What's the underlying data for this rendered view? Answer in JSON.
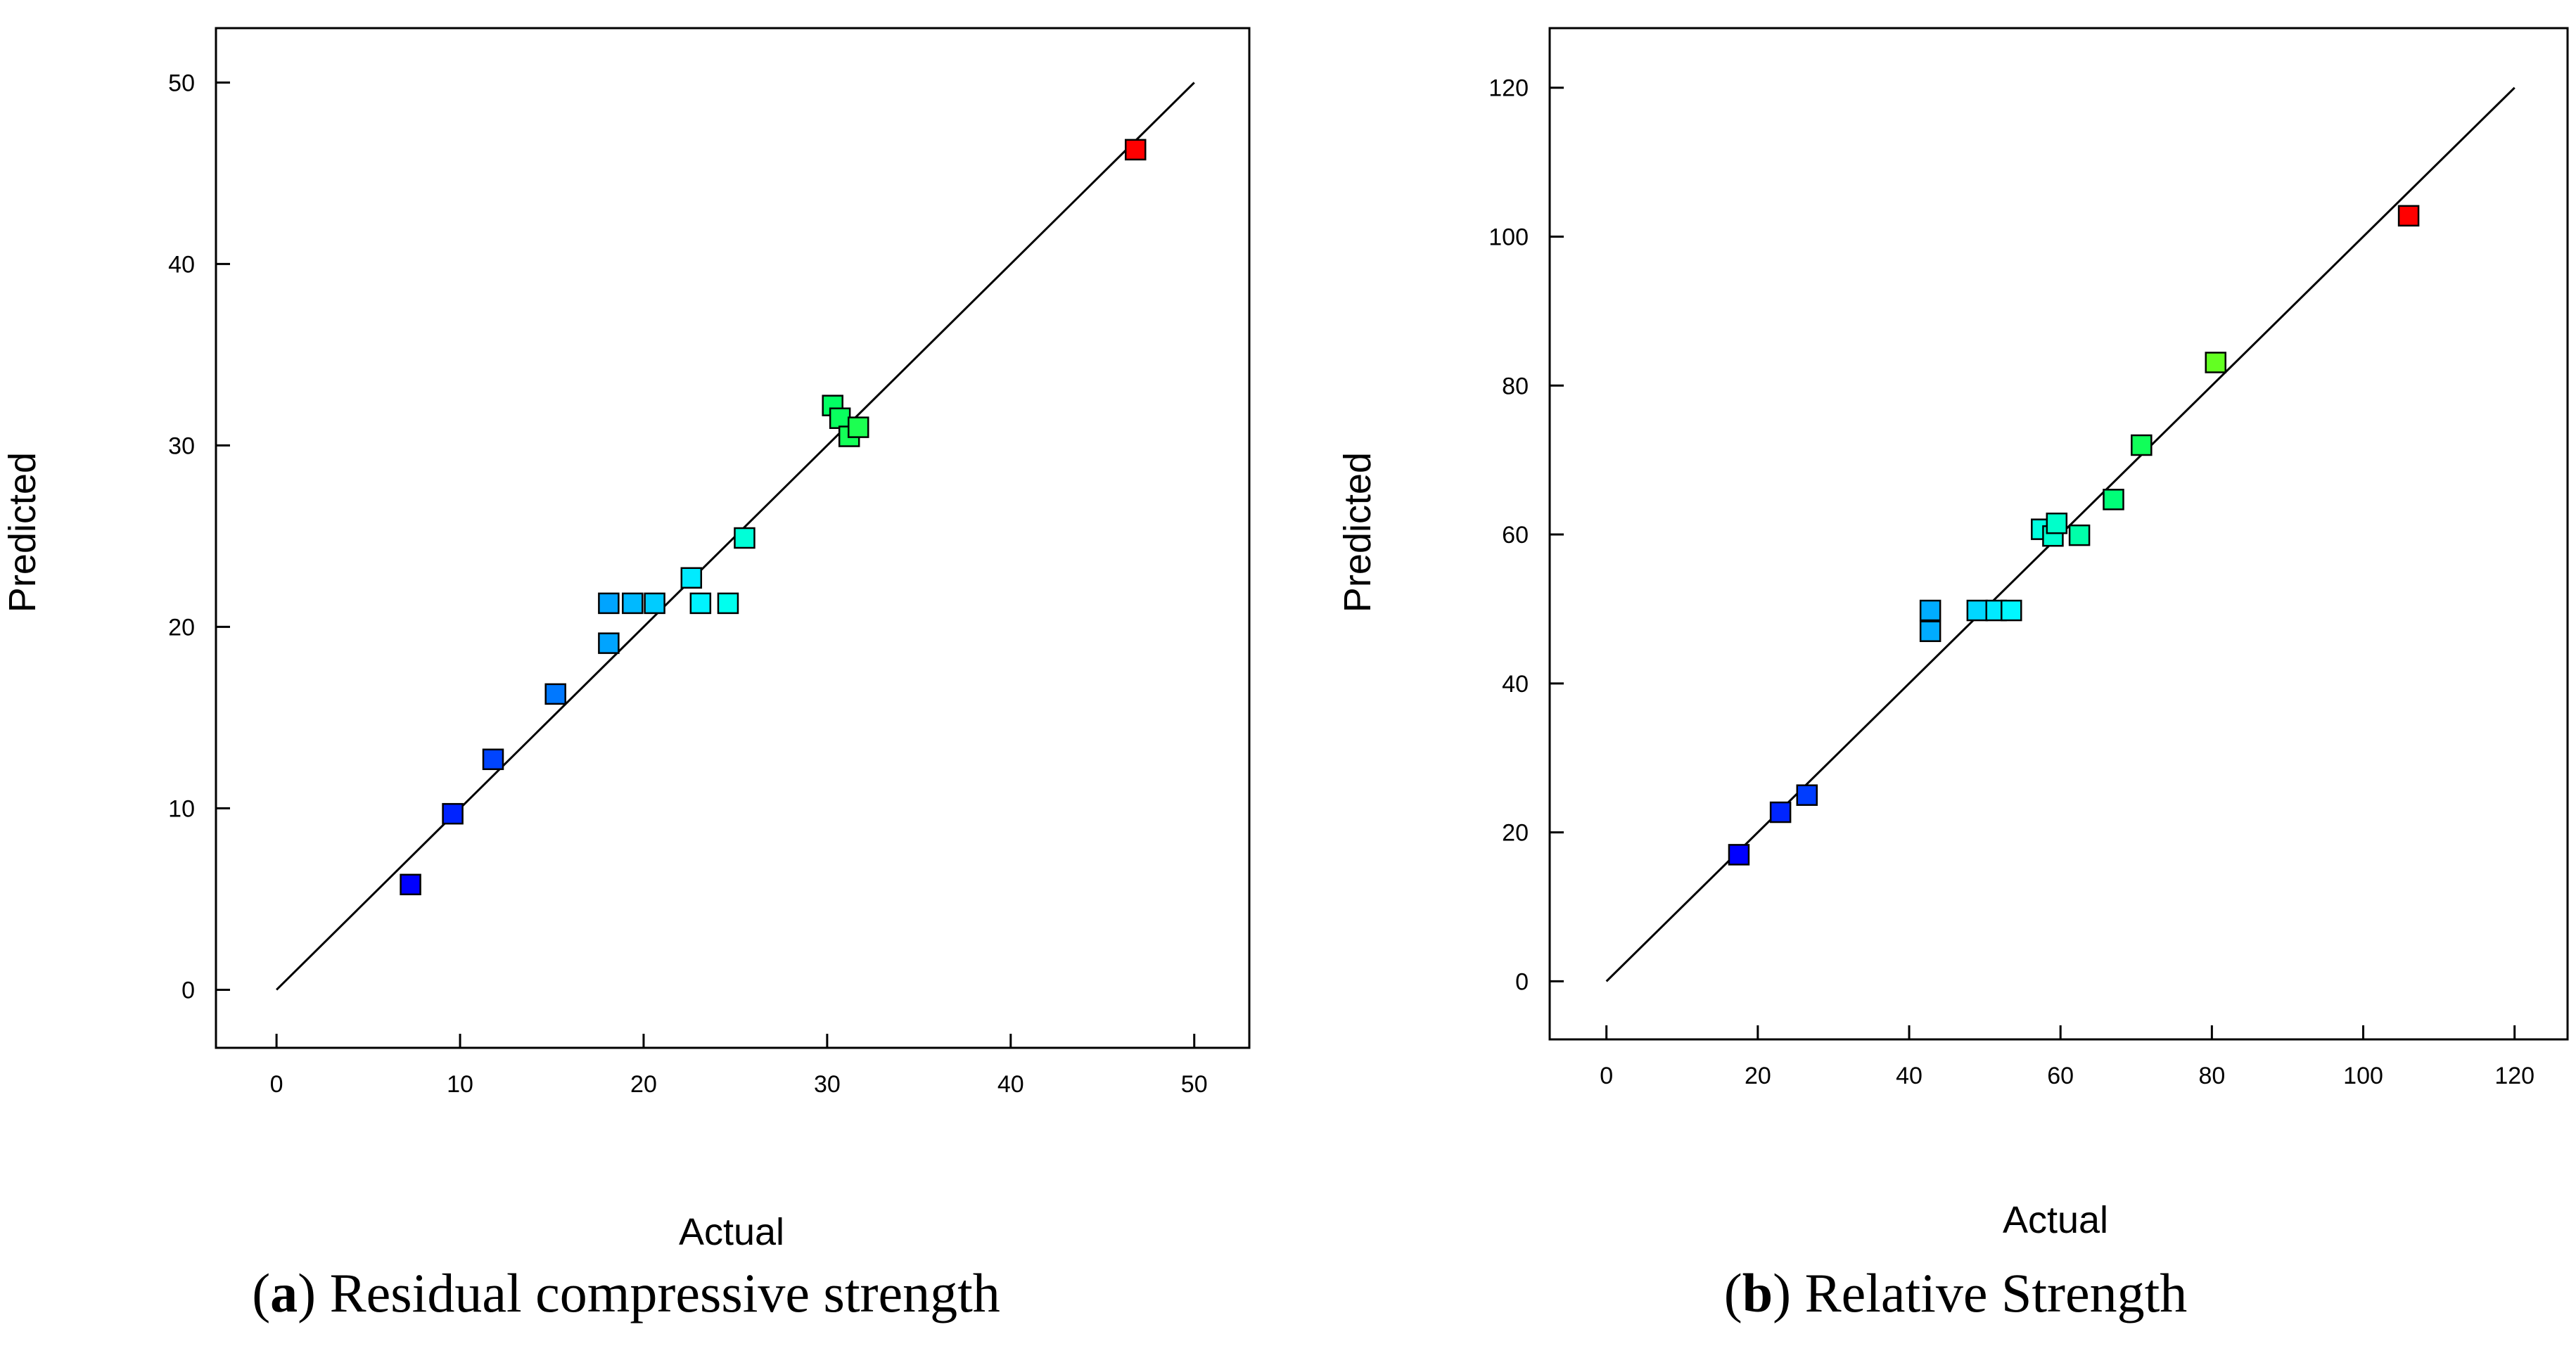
{
  "colors": {
    "frame": "#000000",
    "marker_stroke": "#000000"
  },
  "chart_data": [
    {
      "id": "a",
      "type": "scatter",
      "caption_letter": "a",
      "caption_text": "Residual compressive strength",
      "xlabel": "Actual",
      "ylabel": "Predicted",
      "xlim": [
        -3.3,
        53
      ],
      "ylim": [
        -3.2,
        53
      ],
      "xticks": [
        0,
        10,
        20,
        30,
        40,
        50
      ],
      "yticks": [
        0,
        10,
        20,
        30,
        40,
        50
      ],
      "reference_line": [
        [
          0,
          0
        ],
        [
          50,
          50
        ]
      ],
      "color_range": [
        7.3,
        46.8
      ],
      "points": [
        {
          "x": 7.3,
          "y": 5.8
        },
        {
          "x": 9.6,
          "y": 9.7
        },
        {
          "x": 11.8,
          "y": 12.7
        },
        {
          "x": 15.2,
          "y": 16.3
        },
        {
          "x": 18.1,
          "y": 19.1
        },
        {
          "x": 18.1,
          "y": 21.3
        },
        {
          "x": 19.4,
          "y": 21.3
        },
        {
          "x": 20.6,
          "y": 21.3
        },
        {
          "x": 22.6,
          "y": 22.7
        },
        {
          "x": 23.1,
          "y": 21.3
        },
        {
          "x": 24.6,
          "y": 21.3
        },
        {
          "x": 25.5,
          "y": 24.9
        },
        {
          "x": 30.3,
          "y": 32.2
        },
        {
          "x": 30.7,
          "y": 31.5
        },
        {
          "x": 31.2,
          "y": 30.5
        },
        {
          "x": 31.7,
          "y": 31.0
        },
        {
          "x": 46.8,
          "y": 46.3
        }
      ]
    },
    {
      "id": "b",
      "type": "scatter",
      "caption_letter": "b",
      "caption_text": "Relative Strength",
      "xlabel": "Actual",
      "ylabel": "Predicted",
      "xlim": [
        -7.5,
        127
      ],
      "ylim": [
        -7.8,
        128
      ],
      "xticks": [
        0,
        20,
        40,
        60,
        80,
        100,
        120
      ],
      "yticks": [
        0,
        20,
        40,
        60,
        80,
        100,
        120
      ],
      "reference_line": [
        [
          0,
          0
        ],
        [
          120,
          120
        ]
      ],
      "color_range": [
        17.5,
        106
      ],
      "points": [
        {
          "x": 17.5,
          "y": 17.0
        },
        {
          "x": 23.0,
          "y": 22.7
        },
        {
          "x": 26.5,
          "y": 25.0
        },
        {
          "x": 42.8,
          "y": 47.0
        },
        {
          "x": 42.8,
          "y": 49.8
        },
        {
          "x": 49.0,
          "y": 49.8
        },
        {
          "x": 51.5,
          "y": 49.8
        },
        {
          "x": 53.5,
          "y": 49.8
        },
        {
          "x": 57.5,
          "y": 60.7
        },
        {
          "x": 59.0,
          "y": 59.8
        },
        {
          "x": 59.5,
          "y": 61.5
        },
        {
          "x": 62.5,
          "y": 59.9
        },
        {
          "x": 67.0,
          "y": 64.7
        },
        {
          "x": 70.7,
          "y": 72.0
        },
        {
          "x": 80.5,
          "y": 83.1
        },
        {
          "x": 106.0,
          "y": 102.8
        }
      ]
    }
  ]
}
